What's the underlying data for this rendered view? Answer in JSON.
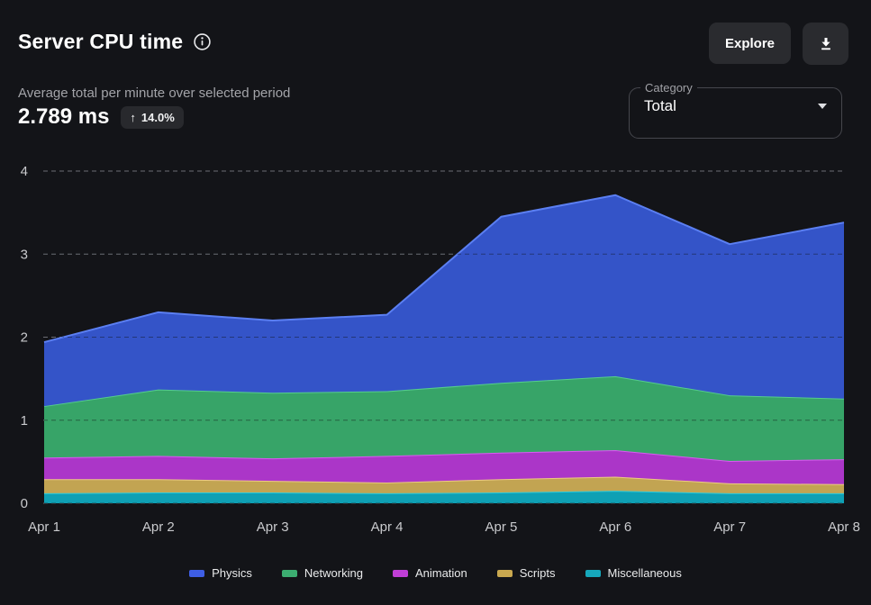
{
  "header": {
    "title": "Server CPU time",
    "explore_label": "Explore"
  },
  "summary": {
    "subtitle": "Average total per minute over selected period",
    "value": "2.789 ms",
    "delta_arrow": "↑",
    "delta": "14.0%",
    "delta_direction": "up"
  },
  "filter": {
    "label": "Category",
    "value": "Total"
  },
  "colors": {
    "background": "#131418",
    "surface": "#2a2b2f",
    "border": "#46474d",
    "axis_text": "#c9cacd",
    "gridline_light": "#6b6c73",
    "gridline_dark": "#101114"
  },
  "chart_data": {
    "type": "area",
    "stacked": true,
    "title": "Server CPU time",
    "unit": "ms",
    "xlabel": "",
    "ylabel": "",
    "ylim": [
      0,
      4
    ],
    "yticks": [
      0,
      1,
      2,
      3,
      4
    ],
    "grid": "dashed horizontal",
    "legend_position": "bottom",
    "x": [
      "Apr 1",
      "Apr 2",
      "Apr 3",
      "Apr 4",
      "Apr 5",
      "Apr 6",
      "Apr 7",
      "Apr 8"
    ],
    "series": [
      {
        "name": "Physics",
        "color": "#3e5ee4",
        "fill": "#3454c8",
        "line": "#5b7ff2",
        "values": [
          0.77,
          0.93,
          0.87,
          0.92,
          2.0,
          2.18,
          1.82,
          2.12
        ]
      },
      {
        "name": "Networking",
        "color": "#3cae71",
        "fill": "#37a468",
        "line": "#55cd8d",
        "values": [
          0.62,
          0.8,
          0.79,
          0.78,
          0.84,
          0.89,
          0.79,
          0.73
        ]
      },
      {
        "name": "Animation",
        "color": "#c03ed6",
        "fill": "#ab36c8",
        "line": "#d95bf0",
        "values": [
          0.26,
          0.28,
          0.27,
          0.32,
          0.32,
          0.32,
          0.27,
          0.3
        ]
      },
      {
        "name": "Scripts",
        "color": "#c9a84f",
        "fill": "#c2a452",
        "line": "#edcb84",
        "values": [
          0.17,
          0.16,
          0.14,
          0.13,
          0.16,
          0.17,
          0.12,
          0.11
        ]
      },
      {
        "name": "Miscellaneous",
        "color": "#16a8bc",
        "fill": "#0fa0b4",
        "line": "#2bcbde",
        "values": [
          0.12,
          0.13,
          0.13,
          0.12,
          0.13,
          0.15,
          0.12,
          0.12
        ]
      }
    ],
    "totals": [
      1.94,
      2.3,
      2.2,
      2.27,
      3.45,
      3.71,
      3.12,
      3.38
    ]
  }
}
